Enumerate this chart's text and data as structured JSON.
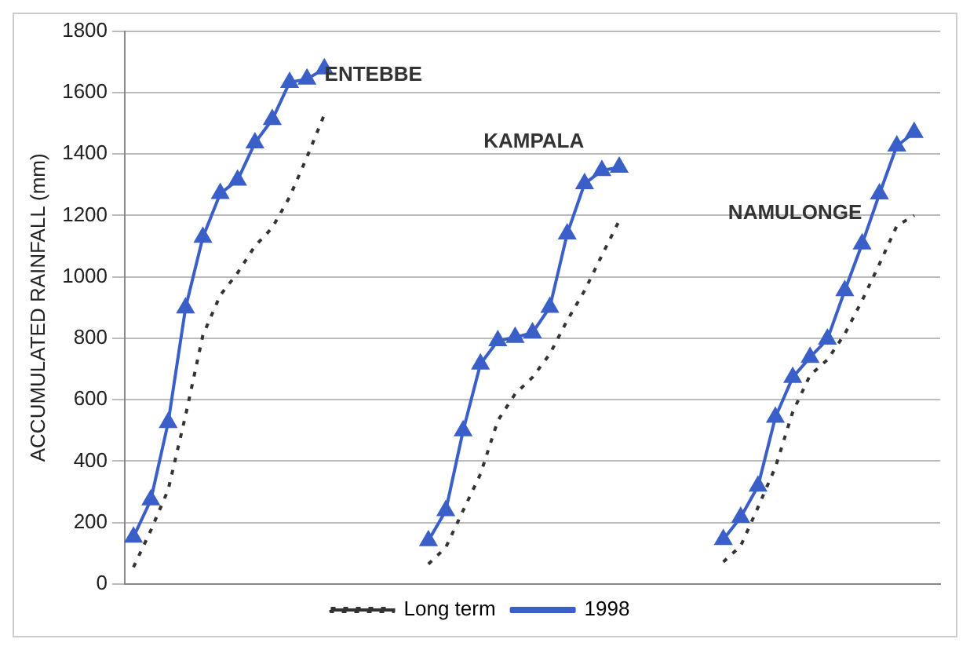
{
  "chart_data": {
    "type": "line",
    "ylabel": "ACCUMULATED RAINFALL (mm)",
    "categories": [
      null,
      null,
      null,
      null,
      null,
      null,
      null,
      null,
      null,
      null,
      null,
      null,
      null,
      null,
      null,
      null,
      null,
      null,
      null,
      null,
      null,
      null,
      null,
      null,
      null,
      null,
      null,
      null,
      null,
      null,
      null,
      null,
      null,
      null,
      null,
      null,
      null,
      null,
      null,
      null,
      null,
      null,
      null,
      null,
      null,
      null,
      null
    ],
    "series": [
      {
        "name": "Long term",
        "color": "#333333",
        "line_style": "dotted",
        "marker": "none",
        "values": [
          55,
          175,
          307,
          548,
          810,
          940,
          1013,
          1100,
          1160,
          1260,
          1390,
          1528,
          null,
          null,
          null,
          null,
          null,
          null,
          null,
          null,
          null,
          null,
          null,
          null,
          null,
          null,
          null,
          null,
          null,
          null,
          null,
          null,
          null,
          null,
          null,
          null,
          null,
          null,
          null,
          null,
          null,
          null,
          null,
          null,
          null,
          null,
          null
        ]
      },
      {
        "color": "#333333",
        "line_style": "dotted",
        "marker": "none",
        "values": [
          null,
          null,
          null,
          null,
          null,
          null,
          null,
          null,
          null,
          null,
          null,
          null,
          null,
          null,
          null,
          null,
          null,
          65,
          119,
          239,
          358,
          532,
          619,
          673,
          749,
          858,
          955,
          1070,
          1183,
          null,
          null,
          null,
          null,
          null,
          null,
          null,
          null,
          null,
          null,
          null,
          null,
          null,
          null,
          null,
          null,
          null,
          null
        ]
      },
      {
        "color": "#333333",
        "line_style": "dotted",
        "marker": "none",
        "values": [
          null,
          null,
          null,
          null,
          null,
          null,
          null,
          null,
          null,
          null,
          null,
          null,
          null,
          null,
          null,
          null,
          null,
          null,
          null,
          null,
          null,
          null,
          null,
          null,
          null,
          null,
          null,
          null,
          null,
          null,
          null,
          null,
          null,
          null,
          72,
          124,
          250,
          380,
          560,
          680,
          730,
          814,
          923,
          1042,
          1166,
          1200,
          null
        ]
      },
      {
        "name": "1998",
        "color": "#3a5fc8",
        "line_style": "solid",
        "marker": "triangle",
        "values": [
          153,
          274,
          526,
          899,
          1129,
          1271,
          1315,
          1436,
          1512,
          1633,
          1644,
          1677,
          null,
          null,
          null,
          null,
          null,
          null,
          null,
          null,
          null,
          null,
          null,
          null,
          null,
          null,
          null,
          null,
          null,
          null,
          null,
          null,
          null,
          null,
          null,
          null,
          null,
          null,
          null,
          null,
          null,
          null,
          null,
          null,
          null,
          null,
          null
        ]
      },
      {
        "color": "#3a5fc8",
        "line_style": "solid",
        "marker": "triangle",
        "values": [
          null,
          null,
          null,
          null,
          null,
          null,
          null,
          null,
          null,
          null,
          null,
          null,
          null,
          null,
          null,
          null,
          null,
          141,
          239,
          499,
          716,
          792,
          803,
          818,
          901,
          1140,
          1303,
          1346,
          1357,
          null,
          null,
          null,
          null,
          null,
          null,
          null,
          null,
          null,
          null,
          null,
          null,
          null,
          null,
          null,
          null,
          null,
          null
        ]
      },
      {
        "color": "#3a5fc8",
        "line_style": "solid",
        "marker": "triangle",
        "values": [
          null,
          null,
          null,
          null,
          null,
          null,
          null,
          null,
          null,
          null,
          null,
          null,
          null,
          null,
          null,
          null,
          null,
          null,
          null,
          null,
          null,
          null,
          null,
          null,
          null,
          null,
          null,
          null,
          null,
          null,
          null,
          null,
          null,
          null,
          145,
          217,
          319,
          543,
          673,
          738,
          797,
          955,
          1107,
          1270,
          1426,
          1470,
          null
        ]
      }
    ],
    "ylim": [
      0,
      1800
    ],
    "yticks": [
      0,
      200,
      400,
      600,
      800,
      1000,
      1200,
      1400,
      1600,
      1800
    ],
    "tick_labels": "y",
    "grid": "y",
    "legend": "bottom",
    "annotations": [
      "ENTEBBE",
      "KAMPALA",
      "NAMULONGE"
    ]
  }
}
